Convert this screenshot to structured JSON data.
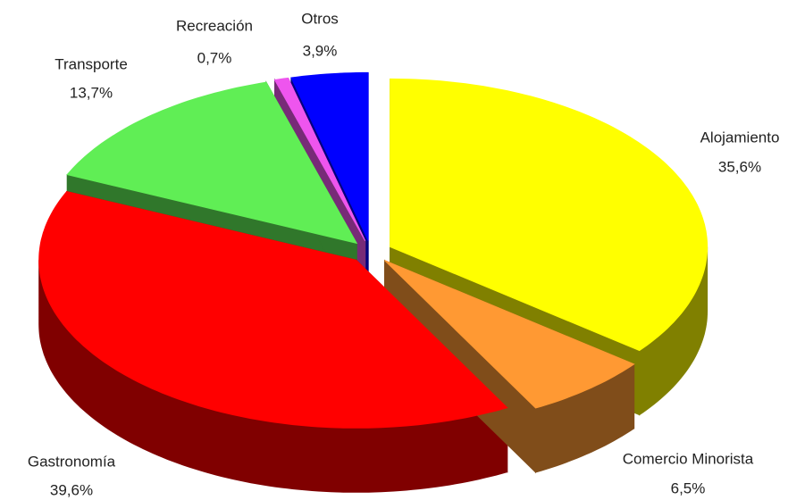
{
  "chart_data": {
    "type": "pie",
    "categories": [
      "Alojamiento",
      "Comercio Minorista",
      "Gastronomía",
      "Transporte",
      "Recreación",
      "Otros"
    ],
    "values": [
      35.6,
      6.5,
      39.6,
      13.7,
      0.7,
      3.9
    ],
    "value_labels": [
      "35,6%",
      "6,5%",
      "39,6%",
      "13,7%",
      "0,7%",
      "3,9%"
    ],
    "colors": [
      "#ffff00",
      "#ff9933",
      "#ff0000",
      "#60ee55",
      "#ee55ee",
      "#0000ff"
    ]
  }
}
